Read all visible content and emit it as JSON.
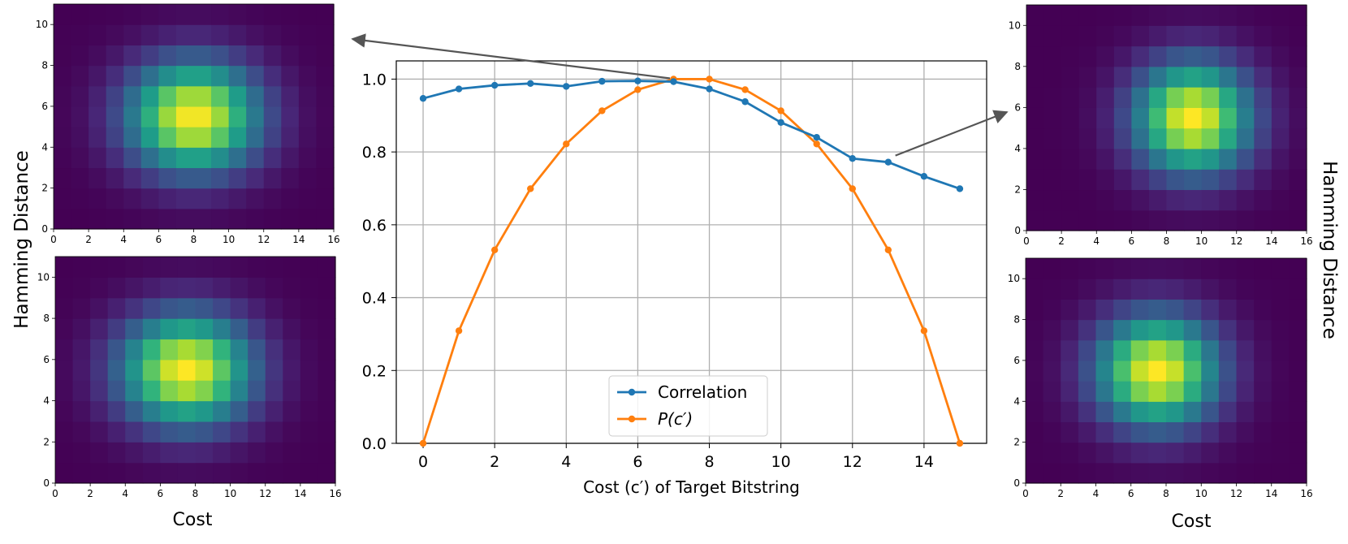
{
  "labels": {
    "left_ylabel": "Hamming Distance",
    "right_ylabel": "Hamming Distance",
    "left_xlabel": "Cost",
    "right_xlabel": "Cost"
  },
  "colors": {
    "correlation": "#1f77b4",
    "p": "#ff7f0e",
    "arrow": "#555555",
    "grid": "#b0b0b0"
  },
  "chart_data": [
    {
      "type": "line",
      "xlabel": "Cost (c′) of Target Bitstring",
      "ylabel": "",
      "xlim": [
        -0.75,
        15.75
      ],
      "ylim": [
        0.0,
        1.05
      ],
      "xticks": [
        0,
        2,
        4,
        6,
        8,
        10,
        12,
        14
      ],
      "yticks": [
        0.0,
        0.2,
        0.4,
        0.6,
        0.8,
        1.0
      ],
      "ytick_labels": [
        "0.0",
        "0.2",
        "0.4",
        "0.6",
        "0.8",
        "1.0"
      ],
      "grid": true,
      "legend": "bottom-center",
      "x": [
        0,
        1,
        2,
        3,
        4,
        5,
        6,
        7,
        8,
        9,
        10,
        11,
        12,
        13,
        14,
        15
      ],
      "series": [
        {
          "name": "Correlation",
          "color": "#1f77b4",
          "values": [
            0.947,
            0.973,
            0.983,
            0.988,
            0.98,
            0.994,
            0.995,
            0.993,
            0.973,
            0.938,
            0.881,
            0.84,
            0.782,
            0.772,
            0.733,
            0.699
          ]
        },
        {
          "name": "P(c′)",
          "color": "#ff7f0e",
          "values": [
            0.0,
            0.309,
            0.531,
            0.699,
            0.822,
            0.913,
            0.971,
            1.0,
            1.0,
            0.971,
            0.913,
            0.822,
            0.699,
            0.531,
            0.309,
            0.0
          ]
        }
      ]
    },
    {
      "type": "heatmap",
      "panel": "top-left",
      "xlabel": "Cost",
      "ylabel": "Hamming Distance",
      "xlim": [
        0,
        16
      ],
      "ylim": [
        0,
        11
      ],
      "xticks": [
        0,
        2,
        4,
        6,
        8,
        10,
        12,
        14,
        16
      ],
      "yticks": [
        0,
        2,
        4,
        6,
        8,
        10
      ],
      "peak": [
        8,
        5.5
      ],
      "spread": [
        2.6,
        1.9
      ]
    },
    {
      "type": "heatmap",
      "panel": "bottom-left",
      "xlabel": "Cost",
      "ylabel": "Hamming Distance",
      "xlim": [
        0,
        16
      ],
      "ylim": [
        0,
        11
      ],
      "xticks": [
        0,
        2,
        4,
        6,
        8,
        10,
        12,
        14,
        16
      ],
      "yticks": [
        0,
        2,
        4,
        6,
        8,
        10
      ],
      "peak": [
        7.5,
        5.5
      ],
      "spread": [
        2.6,
        1.9
      ]
    },
    {
      "type": "heatmap",
      "panel": "top-right",
      "xlabel": "Cost",
      "ylabel": "Hamming Distance",
      "xlim": [
        0,
        16
      ],
      "ylim": [
        0,
        11
      ],
      "xticks": [
        0,
        2,
        4,
        6,
        8,
        10,
        12,
        14,
        16
      ],
      "yticks": [
        0,
        2,
        4,
        6,
        8,
        10
      ],
      "peak": [
        9.5,
        5.5
      ],
      "spread": [
        2.3,
        1.9
      ]
    },
    {
      "type": "heatmap",
      "panel": "bottom-right",
      "xlabel": "Cost",
      "ylabel": "Hamming Distance",
      "xlim": [
        0,
        16
      ],
      "ylim": [
        0,
        11
      ],
      "xticks": [
        0,
        2,
        4,
        6,
        8,
        10,
        12,
        14,
        16
      ],
      "yticks": [
        0,
        2,
        4,
        6,
        8,
        10
      ],
      "peak": [
        7.5,
        5.5
      ],
      "spread": [
        2.4,
        1.9
      ]
    }
  ]
}
